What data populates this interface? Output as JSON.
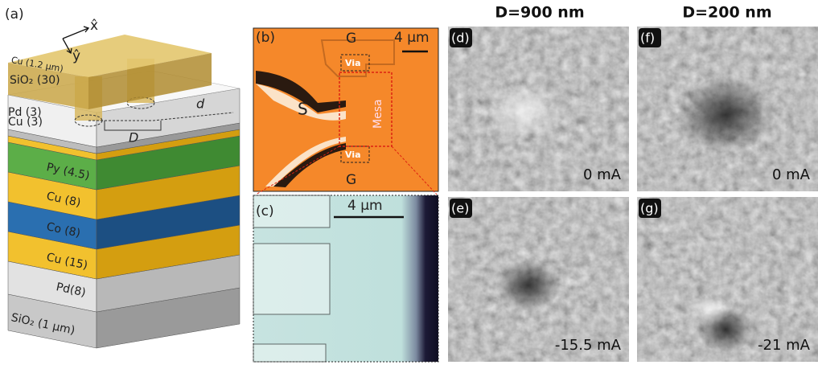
{
  "panel_a": {
    "label": "(a)",
    "axes": [
      "x̂",
      "ŷ"
    ],
    "layers": [
      "Cu (1.2 μm)",
      "SiO₂ (30)",
      "Pd (3)",
      "Cu (3)",
      "Py (4.5)",
      "Cu (8)",
      "Co (8)",
      "Cu (15)",
      "Pd(8)",
      "SiO₂ (1 μm)"
    ],
    "dims": [
      "d",
      "D"
    ]
  },
  "panel_b": {
    "label": "(b)",
    "gates": [
      "G",
      "G"
    ],
    "scale": "4 μm",
    "source": "S",
    "mesa": "Mesa",
    "vias": [
      "Via",
      "Via"
    ]
  },
  "panel_c": {
    "label": "(c)",
    "scale": "4 μm"
  },
  "columns": [
    "D=900 nm",
    "D=200 nm"
  ],
  "images": [
    {
      "label": "(d)",
      "current": "0 mA"
    },
    {
      "label": "(f)",
      "current": "0 mA"
    },
    {
      "label": "(e)",
      "current": "-15.5 mA"
    },
    {
      "label": "(g)",
      "current": "-21 mA"
    }
  ]
}
